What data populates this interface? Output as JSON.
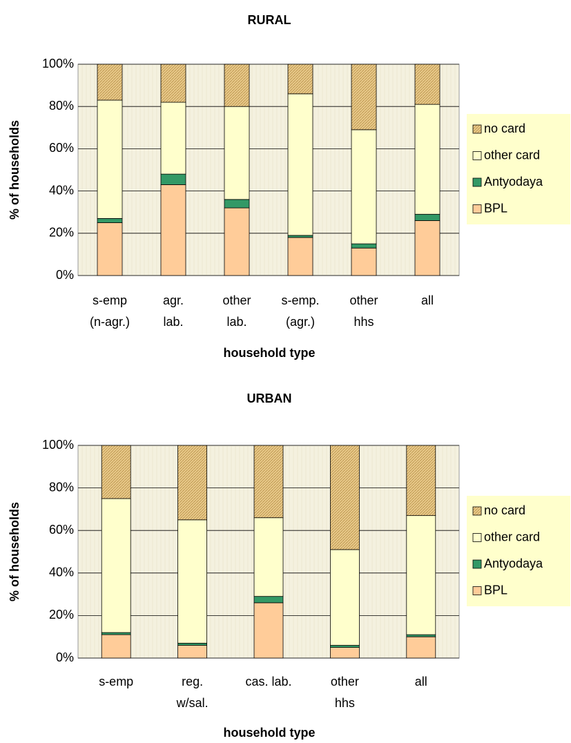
{
  "chart_data": [
    {
      "type": "stacked_bar",
      "title": "RURAL",
      "x_label": "household type",
      "y_label": "% of households",
      "categories": [
        [
          "s-emp",
          "(n-agr.)"
        ],
        [
          "agr.",
          "lab."
        ],
        [
          "other",
          "lab."
        ],
        [
          "s-emp.",
          "(agr.)"
        ],
        [
          "other",
          "hhs"
        ],
        [
          "all"
        ]
      ],
      "series": [
        {
          "name": "BPL",
          "color": "#ffcc99",
          "values": [
            25,
            43,
            32,
            18,
            13,
            26
          ]
        },
        {
          "name": "Antyodaya",
          "color": "#339966",
          "values": [
            2,
            5,
            4,
            1,
            2,
            3
          ]
        },
        {
          "name": "other card",
          "color": "#ffffcc",
          "values": [
            56,
            34,
            44,
            67,
            54,
            52
          ]
        },
        {
          "name": "no card",
          "color": "#d9b56a",
          "values": [
            17,
            18,
            20,
            14,
            31,
            19
          ]
        }
      ],
      "ylim": [
        0,
        100
      ],
      "yticks": [
        {
          "value": 0,
          "label": "0%"
        },
        {
          "value": 20,
          "label": "20%"
        },
        {
          "value": 40,
          "label": "40%"
        },
        {
          "value": 60,
          "label": "60%"
        },
        {
          "value": 80,
          "label": "80%"
        },
        {
          "value": 100,
          "label": "100%"
        }
      ],
      "grid": true,
      "legend": "right"
    },
    {
      "type": "stacked_bar",
      "title": "URBAN",
      "x_label": "household type",
      "y_label": "% of households",
      "categories": [
        [
          "s-emp"
        ],
        [
          "reg.",
          "w/sal."
        ],
        [
          "cas. lab."
        ],
        [
          "other",
          "hhs"
        ],
        [
          "all"
        ]
      ],
      "series": [
        {
          "name": "BPL",
          "color": "#ffcc99",
          "values": [
            11,
            6,
            26,
            5,
            10
          ]
        },
        {
          "name": "Antyodaya",
          "color": "#339966",
          "values": [
            1,
            1,
            3,
            1,
            1
          ]
        },
        {
          "name": "other card",
          "color": "#ffffcc",
          "values": [
            63,
            58,
            37,
            45,
            56
          ]
        },
        {
          "name": "no card",
          "color": "#d9b56a",
          "values": [
            25,
            35,
            34,
            49,
            33
          ]
        }
      ],
      "ylim": [
        0,
        100
      ],
      "yticks": [
        {
          "value": 0,
          "label": "0%"
        },
        {
          "value": 20,
          "label": "20%"
        },
        {
          "value": 40,
          "label": "40%"
        },
        {
          "value": 60,
          "label": "60%"
        },
        {
          "value": 80,
          "label": "80%"
        },
        {
          "value": 100,
          "label": "100%"
        }
      ],
      "grid": true,
      "legend": "right"
    }
  ]
}
